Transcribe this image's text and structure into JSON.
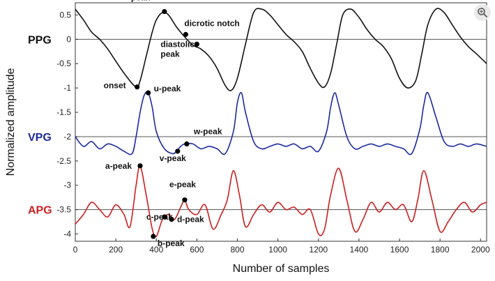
{
  "toolbar": {
    "zoom_icon": "zoom-in-icon"
  },
  "chart_data": {
    "type": "line",
    "title": "",
    "xlabel": "Number of samples",
    "ylabel": "Normalized amplitude",
    "xlim": [
      0,
      2030
    ],
    "ylim": [
      -4.15,
      0.75
    ],
    "xticks": [
      "0",
      "200",
      "400",
      "600",
      "800",
      "1000",
      "1200",
      "1400",
      "1600",
      "1800",
      "2000"
    ],
    "yticks": [
      "0.5",
      "0",
      "-0.5",
      "-1",
      "-1.5",
      "-2",
      "-2.5",
      "-3",
      "-3.5",
      "-4"
    ],
    "grid": false,
    "reference_lines": [
      0,
      -2,
      -3.5
    ],
    "colors": {
      "PPG": "#111111",
      "VPG": "#1a2a9e",
      "APG": "#cc1f1f"
    },
    "series": [
      {
        "name": "PPG",
        "x": [
          0,
          40,
          80,
          120,
          160,
          200,
          250,
          300,
          320,
          350,
          380,
          400,
          430,
          460,
          500,
          540,
          580,
          620,
          660,
          700,
          740,
          770,
          800,
          840,
          880,
          920,
          960,
          1000,
          1040,
          1080,
          1120,
          1160,
          1200,
          1230,
          1260,
          1290,
          1320,
          1360,
          1400,
          1440,
          1480,
          1520,
          1560,
          1600,
          1640,
          1680,
          1710,
          1740,
          1780,
          1820,
          1860,
          1900,
          1940,
          1980,
          2030
        ],
        "values": [
          0.62,
          0.4,
          0.15,
          0.0,
          -0.2,
          -0.45,
          -0.75,
          -0.98,
          -0.85,
          -0.35,
          0.15,
          0.4,
          0.55,
          0.5,
          0.25,
          0.05,
          -0.12,
          -0.2,
          -0.35,
          -0.6,
          -0.95,
          -1.05,
          -0.8,
          -0.1,
          0.55,
          0.62,
          0.5,
          0.3,
          0.1,
          -0.05,
          -0.25,
          -0.6,
          -0.9,
          -0.98,
          -0.7,
          -0.1,
          0.5,
          0.62,
          0.45,
          0.2,
          0.0,
          -0.15,
          -0.4,
          -0.8,
          -1.0,
          -0.85,
          -0.3,
          0.3,
          0.62,
          0.55,
          0.3,
          0.05,
          -0.15,
          -0.3,
          -0.5
        ]
      },
      {
        "name": "VPG",
        "x": [
          0,
          40,
          80,
          120,
          160,
          200,
          240,
          280,
          300,
          320,
          340,
          360,
          380,
          400,
          440,
          480,
          500,
          520,
          540,
          580,
          620,
          660,
          700,
          740,
          780,
          800,
          820,
          840,
          880,
          920,
          960,
          1000,
          1040,
          1080,
          1120,
          1160,
          1200,
          1240,
          1260,
          1280,
          1300,
          1340,
          1380,
          1420,
          1460,
          1500,
          1540,
          1580,
          1620,
          1660,
          1700,
          1720,
          1740,
          1780,
          1820,
          1860,
          1900,
          1940,
          1980,
          2030
        ],
        "values": [
          -2.0,
          -2.2,
          -2.1,
          -2.25,
          -2.15,
          -2.2,
          -2.3,
          -2.35,
          -2.0,
          -1.5,
          -1.15,
          -1.1,
          -1.4,
          -1.9,
          -2.25,
          -2.35,
          -2.3,
          -2.2,
          -2.15,
          -2.15,
          -2.25,
          -2.2,
          -2.25,
          -2.35,
          -1.9,
          -1.3,
          -1.1,
          -1.5,
          -2.1,
          -2.25,
          -2.2,
          -2.15,
          -2.2,
          -2.15,
          -2.25,
          -2.2,
          -2.3,
          -1.9,
          -1.4,
          -1.1,
          -1.35,
          -2.0,
          -2.25,
          -2.2,
          -2.15,
          -2.2,
          -2.15,
          -2.2,
          -2.25,
          -2.35,
          -1.85,
          -1.35,
          -1.1,
          -1.6,
          -2.1,
          -2.2,
          -2.15,
          -2.2,
          -2.15,
          -2.2
        ]
      },
      {
        "name": "APG",
        "x": [
          0,
          40,
          80,
          120,
          160,
          200,
          240,
          270,
          300,
          320,
          350,
          380,
          400,
          430,
          460,
          490,
          520,
          540,
          560,
          600,
          640,
          680,
          720,
          750,
          780,
          810,
          840,
          880,
          920,
          960,
          1000,
          1040,
          1080,
          1120,
          1160,
          1200,
          1230,
          1260,
          1300,
          1340,
          1380,
          1420,
          1460,
          1500,
          1540,
          1580,
          1620,
          1660,
          1690,
          1720,
          1760,
          1800,
          1840,
          1880,
          1920,
          1960,
          2000,
          2030
        ],
        "values": [
          -3.8,
          -3.6,
          -3.35,
          -3.5,
          -3.65,
          -3.4,
          -3.6,
          -3.85,
          -3.0,
          -2.6,
          -3.2,
          -3.9,
          -4.05,
          -3.7,
          -3.6,
          -3.7,
          -3.45,
          -3.3,
          -3.5,
          -3.6,
          -3.4,
          -3.9,
          -3.6,
          -3.3,
          -2.7,
          -3.2,
          -3.85,
          -3.6,
          -3.4,
          -3.55,
          -3.35,
          -3.5,
          -3.45,
          -3.6,
          -3.5,
          -4.0,
          -3.9,
          -3.2,
          -2.65,
          -3.3,
          -3.95,
          -3.7,
          -3.35,
          -3.55,
          -3.35,
          -3.5,
          -3.4,
          -3.75,
          -3.3,
          -2.7,
          -3.3,
          -3.95,
          -3.75,
          -3.5,
          -3.35,
          -3.55,
          -3.4,
          -3.35
        ]
      }
    ],
    "series_labels": [
      {
        "name": "PPG",
        "y": 0.0
      },
      {
        "name": "VPG",
        "y": -2.0
      },
      {
        "name": "APG",
        "y": -3.5
      }
    ],
    "annotations": [
      {
        "label": "systolic\npeak",
        "x": 440,
        "y": 0.57,
        "series": "PPG",
        "marker": true
      },
      {
        "label": "dicrotic notch",
        "x": 545,
        "y": 0.1,
        "series": "PPG",
        "marker": true
      },
      {
        "label": "diastolic\npeak",
        "x": 600,
        "y": -0.1,
        "series": "PPG",
        "marker": true
      },
      {
        "label": "onset",
        "x": 305,
        "y": -0.98,
        "series": "PPG",
        "marker": true
      },
      {
        "label": "u-peak",
        "x": 360,
        "y": -1.1,
        "series": "VPG",
        "marker": true
      },
      {
        "label": "w-peak",
        "x": 550,
        "y": -2.15,
        "series": "VPG",
        "marker": true
      },
      {
        "label": "v-peak",
        "x": 505,
        "y": -2.3,
        "series": "VPG",
        "marker": true
      },
      {
        "label": "a-peak",
        "x": 320,
        "y": -2.6,
        "series": "APG",
        "marker": true
      },
      {
        "label": "e-peak",
        "x": 540,
        "y": -3.3,
        "series": "APG",
        "marker": true
      },
      {
        "label": "c-peak",
        "x": 440,
        "y": -3.65,
        "series": "APG",
        "marker": true
      },
      {
        "label": "d-peak",
        "x": 475,
        "y": -3.7,
        "series": "APG",
        "marker": true
      },
      {
        "label": "b-peak",
        "x": 385,
        "y": -4.05,
        "series": "APG",
        "marker": true
      }
    ]
  }
}
